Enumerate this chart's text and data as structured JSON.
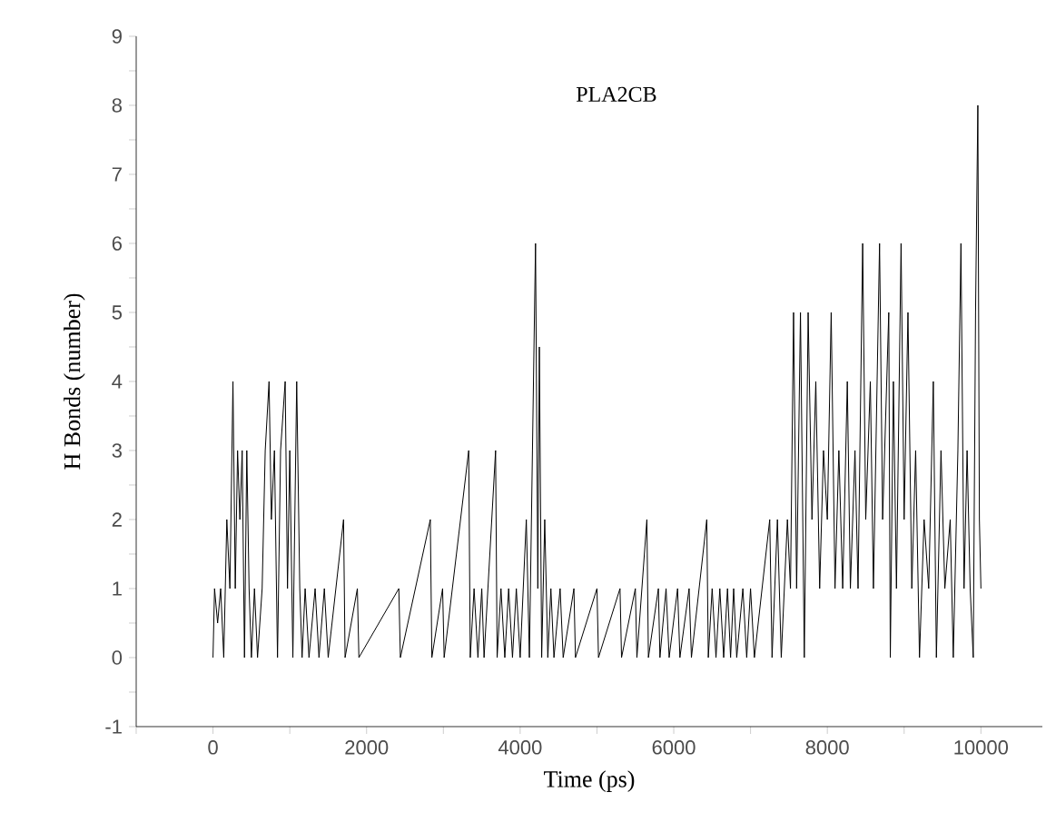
{
  "chart_data": {
    "type": "line",
    "title": "PLA2CB",
    "xlabel": "Time (ps)",
    "ylabel": "H Bonds (number)",
    "xlim": [
      -1000,
      10800
    ],
    "ylim": [
      -1,
      9
    ],
    "xticks": [
      {
        "value": -1000,
        "label": null
      },
      0,
      {
        "value": 1000,
        "label": null
      },
      2000,
      {
        "value": 3000,
        "label": null
      },
      4000,
      {
        "value": 5000,
        "label": null
      },
      6000,
      {
        "value": 7000,
        "label": null
      },
      8000,
      {
        "value": 9000,
        "label": null
      },
      10000
    ],
    "yticks": [
      -1,
      {
        "value": -0.5,
        "label": null
      },
      0,
      {
        "value": 0.5,
        "label": null
      },
      1,
      {
        "value": 1.5,
        "label": null
      },
      2,
      {
        "value": 2.5,
        "label": null
      },
      3,
      {
        "value": 3.5,
        "label": null
      },
      4,
      {
        "value": 4.5,
        "label": null
      },
      5,
      {
        "value": 5.5,
        "label": null
      },
      6,
      {
        "value": 6.5,
        "label": null
      },
      7,
      {
        "value": 7.5,
        "label": null
      },
      8,
      {
        "value": 8.5,
        "label": null
      },
      9
    ],
    "grid": false,
    "marker": "none",
    "line_style": "solid",
    "series": [
      {
        "color": "#000000",
        "x": [
          0,
          20,
          60,
          100,
          140,
          180,
          220,
          260,
          290,
          320,
          350,
          380,
          410,
          440,
          470,
          500,
          540,
          580,
          640,
          680,
          730,
          760,
          800,
          840,
          880,
          940,
          970,
          1000,
          1040,
          1090,
          1130,
          1160,
          1200,
          1250,
          1330,
          1380,
          1450,
          1500,
          1700,
          1720,
          1880,
          1900,
          2420,
          2440,
          2830,
          2850,
          2990,
          3010,
          3330,
          3350,
          3400,
          3450,
          3500,
          3530,
          3680,
          3700,
          3750,
          3800,
          3850,
          3900,
          3950,
          4000,
          4080,
          4120,
          4160,
          4200,
          4230,
          4250,
          4280,
          4320,
          4360,
          4400,
          4440,
          4520,
          4560,
          4700,
          4720,
          5000,
          5020,
          5300,
          5320,
          5500,
          5520,
          5650,
          5670,
          5800,
          5820,
          5900,
          5940,
          6050,
          6080,
          6200,
          6230,
          6430,
          6450,
          6500,
          6550,
          6600,
          6650,
          6700,
          6740,
          6780,
          6820,
          6900,
          6950,
          7000,
          7050,
          7250,
          7280,
          7350,
          7400,
          7480,
          7520,
          7560,
          7600,
          7650,
          7700,
          7750,
          7800,
          7850,
          7900,
          7950,
          8000,
          8050,
          8100,
          8150,
          8200,
          8260,
          8300,
          8360,
          8400,
          8460,
          8500,
          8560,
          8600,
          8680,
          8720,
          8800,
          8820,
          8860,
          8900,
          8960,
          9000,
          9050,
          9100,
          9150,
          9200,
          9260,
          9320,
          9380,
          9420,
          9480,
          9530,
          9600,
          9640,
          9700,
          9740,
          9780,
          9820,
          9860,
          9900,
          9930,
          9960,
          9980,
          10000
        ],
        "values": [
          0,
          1,
          0.5,
          1,
          0,
          2,
          1,
          4,
          1,
          3,
          2,
          3,
          0,
          3,
          1,
          0,
          1,
          0,
          1,
          3,
          4,
          2,
          3,
          0,
          3,
          4,
          1,
          3,
          0,
          4,
          1,
          0,
          1,
          0,
          1,
          0,
          1,
          0,
          2,
          0,
          1,
          0,
          1,
          0,
          2,
          0,
          1,
          0,
          3,
          0,
          1,
          0,
          1,
          0,
          3,
          0,
          1,
          0,
          1,
          0,
          1,
          0,
          2,
          0,
          3,
          6,
          1,
          4.5,
          0,
          2,
          0,
          1,
          0,
          1,
          0,
          1,
          0,
          1,
          0,
          1,
          0,
          1,
          0,
          2,
          0,
          1,
          0,
          1,
          0,
          1,
          0,
          1,
          0,
          2,
          0,
          1,
          0,
          1,
          0,
          1,
          0,
          1,
          0,
          1,
          0,
          1,
          0,
          2,
          0,
          2,
          0,
          2,
          1,
          5,
          1,
          5,
          0,
          5,
          2,
          4,
          1,
          3,
          2,
          5,
          1,
          3,
          1,
          4,
          1,
          3,
          1,
          6,
          2,
          4,
          1,
          6,
          2,
          5,
          0,
          4,
          1,
          6,
          2,
          5,
          1,
          3,
          0,
          2,
          1,
          4,
          0,
          3,
          1,
          2,
          0,
          3,
          6,
          1,
          3,
          1,
          0,
          5,
          8,
          2,
          1
        ]
      }
    ]
  }
}
